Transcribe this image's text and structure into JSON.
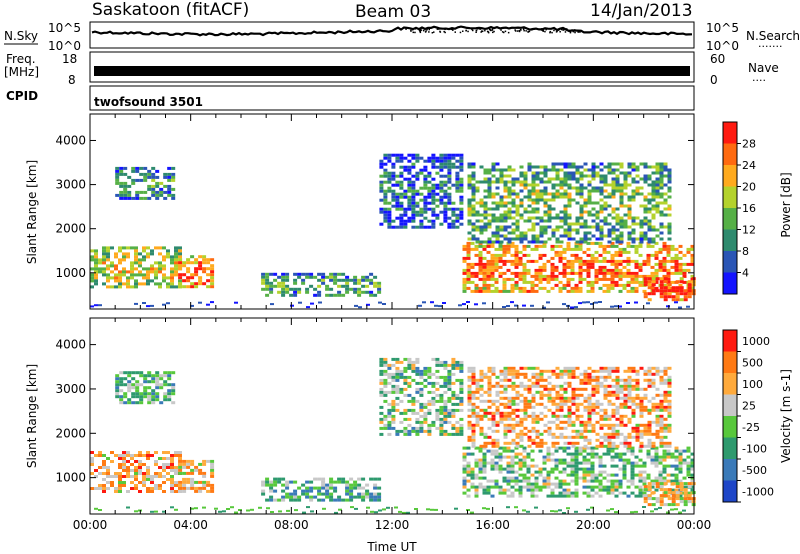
{
  "header": {
    "station": "Saskatoon (fitACF)",
    "beam": "Beam 03",
    "date": "14/Jan/2013"
  },
  "noise_panel": {
    "left_label": "N.Sky",
    "right_label": "N.Search",
    "right_dots": "·······",
    "left_ticks": [
      "10^5",
      "10^0"
    ],
    "right_ticks": [
      "10^5",
      "10^0"
    ]
  },
  "freq_panel": {
    "left_label": "Freq.",
    "left_unit": "[MHz]",
    "right_label": "Nave",
    "right_dots": "····",
    "left_ticks": [
      "18",
      "8"
    ],
    "right_ticks": [
      "60",
      "0"
    ]
  },
  "cpid_panel": {
    "label": "CPID",
    "program": "twofsound 3501"
  },
  "chart_data": [
    {
      "type": "heatmap",
      "parameter": "power",
      "ylabel": "Slant Range [km]",
      "ylim": [
        180,
        4600
      ],
      "yticks": [
        1000,
        2000,
        3000,
        4000
      ],
      "xlim": [
        0,
        24
      ],
      "colorbar": {
        "label": "Power [dB]",
        "range": [
          0,
          32
        ],
        "ticks": [
          "4",
          "8",
          "12",
          "16",
          "20",
          "24",
          "28"
        ],
        "colors": [
          "#1414ff",
          "#2a55b5",
          "#2e8a6e",
          "#56b046",
          "#b4d22c",
          "#ffaa1e",
          "#ff6a10",
          "#ff1a10"
        ]
      },
      "echo_regions": [
        {
          "t0": 0.0,
          "t1": 3.5,
          "r0": 700,
          "r1": 1600,
          "level": 0.55
        },
        {
          "t0": 1.0,
          "t1": 3.3,
          "r0": 2700,
          "r1": 3400,
          "level": 0.3
        },
        {
          "t0": 3.5,
          "t1": 4.8,
          "r0": 700,
          "r1": 1400,
          "level": 0.8
        },
        {
          "t0": 6.8,
          "t1": 11.5,
          "r0": 500,
          "r1": 1000,
          "level": 0.35
        },
        {
          "t0": 11.5,
          "t1": 14.8,
          "r0": 2000,
          "r1": 3700,
          "level": 0.2
        },
        {
          "t0": 14.8,
          "t1": 24.0,
          "r0": 600,
          "r1": 1700,
          "level": 0.75
        },
        {
          "t0": 15.0,
          "t1": 23.0,
          "r0": 1700,
          "r1": 3500,
          "level": 0.4
        },
        {
          "t0": 22.0,
          "t1": 24.0,
          "r0": 400,
          "r1": 900,
          "level": 0.9
        }
      ]
    },
    {
      "type": "heatmap",
      "parameter": "velocity",
      "ylabel": "Slant Range [km]",
      "xlabel": "Time UT",
      "ylim": [
        180,
        4600
      ],
      "yticks": [
        1000,
        2000,
        3000,
        4000
      ],
      "xlim": [
        0,
        24
      ],
      "xticks": [
        "00:00",
        "04:00",
        "08:00",
        "12:00",
        "16:00",
        "20:00",
        "00:00"
      ],
      "colorbar": {
        "label": "Velocity [m s-1]",
        "ticks": [
          "1000",
          "500",
          "100",
          "25",
          "-25",
          "-100",
          "-500",
          "-1000"
        ],
        "colors": [
          "#1e46c8",
          "#3a7ab8",
          "#2e9a6e",
          "#58c83c",
          "#c8c8c8",
          "#ffaa3c",
          "#ff7a14",
          "#ff1a10"
        ]
      },
      "echo_regions": [
        {
          "t0": 0.0,
          "t1": 3.5,
          "r0": 700,
          "r1": 1600,
          "level": 0.7
        },
        {
          "t0": 1.0,
          "t1": 3.3,
          "r0": 2700,
          "r1": 3400,
          "level": 0.4
        },
        {
          "t0": 3.5,
          "t1": 4.8,
          "r0": 700,
          "r1": 1400,
          "level": 0.65
        },
        {
          "t0": 6.8,
          "t1": 11.5,
          "r0": 500,
          "r1": 1000,
          "level": 0.35
        },
        {
          "t0": 11.5,
          "t1": 14.8,
          "r0": 2000,
          "r1": 3700,
          "level": 0.45
        },
        {
          "t0": 14.8,
          "t1": 24.0,
          "r0": 600,
          "r1": 1700,
          "level": 0.45
        },
        {
          "t0": 15.0,
          "t1": 23.0,
          "r0": 1700,
          "r1": 3500,
          "level": 0.7
        },
        {
          "t0": 22.0,
          "t1": 24.0,
          "r0": 400,
          "r1": 900,
          "level": 0.65
        }
      ]
    }
  ]
}
